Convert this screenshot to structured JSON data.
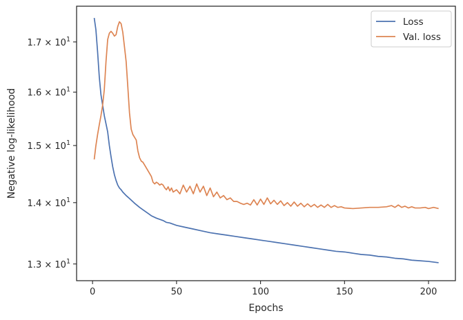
{
  "chart_data": {
    "type": "line",
    "xlabel": "Epochs",
    "ylabel": "Negative log-likelihood",
    "yscale": "log",
    "xlim": [
      -9.5,
      216
    ],
    "ylim": [
      12.74,
      17.75
    ],
    "grid": false,
    "legend_position": "top-right",
    "x_ticks": [
      {
        "value": 0,
        "label": "0"
      },
      {
        "value": 50,
        "label": "50"
      },
      {
        "value": 100,
        "label": "100"
      },
      {
        "value": 150,
        "label": "150"
      },
      {
        "value": 200,
        "label": "200"
      }
    ],
    "y_ticks": [
      {
        "value": 13,
        "mantissa": "1.3",
        "base": "10",
        "exp": "1"
      },
      {
        "value": 14,
        "mantissa": "1.4",
        "base": "10",
        "exp": "1"
      },
      {
        "value": 15,
        "mantissa": "1.5",
        "base": "10",
        "exp": "1"
      },
      {
        "value": 16,
        "mantissa": "1.6",
        "base": "10",
        "exp": "1"
      },
      {
        "value": 17,
        "mantissa": "1.7",
        "base": "10",
        "exp": "1"
      }
    ],
    "series": [
      {
        "name": "Loss",
        "color": "#4c72b0",
        "points": [
          [
            1,
            17.5
          ],
          [
            2,
            17.25
          ],
          [
            3,
            16.8
          ],
          [
            4,
            16.3
          ],
          [
            5,
            15.95
          ],
          [
            6,
            15.75
          ],
          [
            7,
            15.55
          ],
          [
            8,
            15.4
          ],
          [
            9,
            15.25
          ],
          [
            10,
            15.0
          ],
          [
            11,
            14.8
          ],
          [
            12,
            14.62
          ],
          [
            13,
            14.48
          ],
          [
            14,
            14.38
          ],
          [
            15,
            14.3
          ],
          [
            16,
            14.25
          ],
          [
            17,
            14.22
          ],
          [
            18,
            14.18
          ],
          [
            20,
            14.12
          ],
          [
            22,
            14.07
          ],
          [
            25,
            13.99
          ],
          [
            28,
            13.92
          ],
          [
            30,
            13.88
          ],
          [
            33,
            13.82
          ],
          [
            35,
            13.78
          ],
          [
            38,
            13.74
          ],
          [
            40,
            13.72
          ],
          [
            42,
            13.7
          ],
          [
            44,
            13.67
          ],
          [
            46,
            13.66
          ],
          [
            48,
            13.64
          ],
          [
            50,
            13.62
          ],
          [
            55,
            13.59
          ],
          [
            60,
            13.56
          ],
          [
            65,
            13.53
          ],
          [
            70,
            13.5
          ],
          [
            75,
            13.48
          ],
          [
            80,
            13.46
          ],
          [
            85,
            13.44
          ],
          [
            90,
            13.42
          ],
          [
            95,
            13.4
          ],
          [
            100,
            13.38
          ],
          [
            105,
            13.36
          ],
          [
            110,
            13.34
          ],
          [
            115,
            13.32
          ],
          [
            120,
            13.3
          ],
          [
            125,
            13.28
          ],
          [
            130,
            13.26
          ],
          [
            135,
            13.24
          ],
          [
            140,
            13.22
          ],
          [
            145,
            13.2
          ],
          [
            150,
            13.19
          ],
          [
            155,
            13.17
          ],
          [
            160,
            13.15
          ],
          [
            165,
            13.14
          ],
          [
            170,
            13.12
          ],
          [
            175,
            13.11
          ],
          [
            180,
            13.09
          ],
          [
            185,
            13.08
          ],
          [
            190,
            13.06
          ],
          [
            195,
            13.05
          ],
          [
            200,
            13.04
          ],
          [
            206,
            13.02
          ]
        ]
      },
      {
        "name": "Val. loss",
        "color": "#dd8452",
        "points": [
          [
            1,
            14.75
          ],
          [
            2,
            15.0
          ],
          [
            3,
            15.2
          ],
          [
            4,
            15.38
          ],
          [
            5,
            15.55
          ],
          [
            6,
            15.75
          ],
          [
            7,
            16.05
          ],
          [
            8,
            16.6
          ],
          [
            9,
            17.05
          ],
          [
            10,
            17.18
          ],
          [
            11,
            17.22
          ],
          [
            12,
            17.18
          ],
          [
            13,
            17.12
          ],
          [
            14,
            17.15
          ],
          [
            15,
            17.32
          ],
          [
            16,
            17.42
          ],
          [
            17,
            17.38
          ],
          [
            18,
            17.2
          ],
          [
            19,
            16.9
          ],
          [
            20,
            16.6
          ],
          [
            21,
            16.1
          ],
          [
            22,
            15.6
          ],
          [
            23,
            15.3
          ],
          [
            24,
            15.2
          ],
          [
            25,
            15.15
          ],
          [
            26,
            15.1
          ],
          [
            27,
            14.9
          ],
          [
            28,
            14.78
          ],
          [
            29,
            14.72
          ],
          [
            30,
            14.7
          ],
          [
            31,
            14.65
          ],
          [
            32,
            14.6
          ],
          [
            33,
            14.55
          ],
          [
            34,
            14.5
          ],
          [
            35,
            14.45
          ],
          [
            36,
            14.35
          ],
          [
            37,
            14.32
          ],
          [
            38,
            14.35
          ],
          [
            39,
            14.33
          ],
          [
            40,
            14.3
          ],
          [
            41,
            14.32
          ],
          [
            42,
            14.3
          ],
          [
            43,
            14.25
          ],
          [
            44,
            14.22
          ],
          [
            45,
            14.27
          ],
          [
            46,
            14.2
          ],
          [
            47,
            14.25
          ],
          [
            48,
            14.18
          ],
          [
            49,
            14.2
          ],
          [
            50,
            14.22
          ],
          [
            52,
            14.15
          ],
          [
            54,
            14.3
          ],
          [
            56,
            14.18
          ],
          [
            58,
            14.28
          ],
          [
            60,
            14.15
          ],
          [
            62,
            14.32
          ],
          [
            64,
            14.18
          ],
          [
            66,
            14.28
          ],
          [
            68,
            14.12
          ],
          [
            70,
            14.25
          ],
          [
            72,
            14.1
          ],
          [
            74,
            14.18
          ],
          [
            76,
            14.08
          ],
          [
            78,
            14.12
          ],
          [
            80,
            14.05
          ],
          [
            82,
            14.08
          ],
          [
            84,
            14.02
          ],
          [
            86,
            14.02
          ],
          [
            88,
            13.99
          ],
          [
            90,
            13.97
          ],
          [
            92,
            13.99
          ],
          [
            94,
            13.96
          ],
          [
            96,
            14.05
          ],
          [
            98,
            13.96
          ],
          [
            100,
            14.06
          ],
          [
            102,
            13.97
          ],
          [
            104,
            14.08
          ],
          [
            106,
            13.98
          ],
          [
            108,
            14.04
          ],
          [
            110,
            13.97
          ],
          [
            112,
            14.03
          ],
          [
            114,
            13.95
          ],
          [
            116,
            14.0
          ],
          [
            118,
            13.94
          ],
          [
            120,
            14.01
          ],
          [
            122,
            13.94
          ],
          [
            124,
            13.99
          ],
          [
            126,
            13.93
          ],
          [
            128,
            13.98
          ],
          [
            130,
            13.93
          ],
          [
            132,
            13.97
          ],
          [
            134,
            13.92
          ],
          [
            136,
            13.96
          ],
          [
            138,
            13.92
          ],
          [
            140,
            13.97
          ],
          [
            142,
            13.92
          ],
          [
            144,
            13.95
          ],
          [
            146,
            13.92
          ],
          [
            148,
            13.93
          ],
          [
            150,
            13.91
          ],
          [
            155,
            13.9
          ],
          [
            160,
            13.91
          ],
          [
            165,
            13.92
          ],
          [
            170,
            13.92
          ],
          [
            175,
            13.93
          ],
          [
            178,
            13.95
          ],
          [
            180,
            13.92
          ],
          [
            182,
            13.96
          ],
          [
            184,
            13.92
          ],
          [
            186,
            13.94
          ],
          [
            188,
            13.91
          ],
          [
            190,
            13.93
          ],
          [
            192,
            13.91
          ],
          [
            195,
            13.91
          ],
          [
            198,
            13.92
          ],
          [
            200,
            13.9
          ],
          [
            203,
            13.92
          ],
          [
            206,
            13.9
          ]
        ]
      }
    ]
  }
}
